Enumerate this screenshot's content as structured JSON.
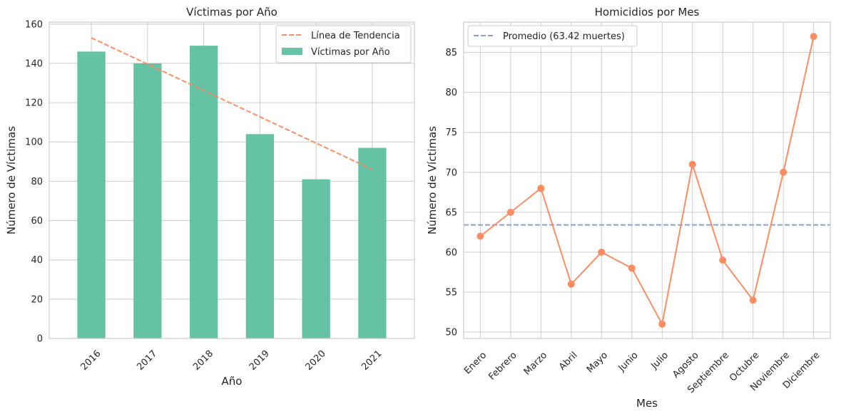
{
  "chart_data": [
    {
      "type": "bar",
      "title": "Víctimas por Año",
      "xlabel": "Año",
      "ylabel": "Número de Víctimas",
      "categories": [
        "2016",
        "2017",
        "2018",
        "2019",
        "2020",
        "2021"
      ],
      "series": [
        {
          "name": "Víctimas por Año",
          "values": [
            146,
            140,
            149,
            104,
            81,
            97
          ],
          "color": "#66c2a5"
        }
      ],
      "trend": {
        "name": "Línea de Tendencia",
        "start": 153,
        "end": 86,
        "color": "#fc8d62"
      },
      "ylim": [
        0,
        161
      ],
      "yticks": [
        0,
        20,
        40,
        60,
        80,
        100,
        120,
        140,
        160
      ],
      "grid": true,
      "legend": "top-right"
    },
    {
      "type": "line",
      "title": "Homicidios por Mes",
      "xlabel": "Mes",
      "ylabel": "Número de Víctimas",
      "categories": [
        "Enero",
        "Febrero",
        "Marzo",
        "Abril",
        "Mayo",
        "Junio",
        "Julio",
        "Agosto",
        "Septiembre",
        "Octubre",
        "Noviembre",
        "Diciembre"
      ],
      "series": [
        {
          "values": [
            62,
            65,
            68,
            56,
            60,
            58,
            51,
            71,
            59,
            54,
            70,
            87
          ],
          "color": "#fc8d62"
        }
      ],
      "reference_line": {
        "name": "Promedio (63.42 muertes)",
        "value": 63.42,
        "color": "#8da0cb"
      },
      "ylim": [
        49.2,
        88.8
      ],
      "yticks": [
        50,
        55,
        60,
        65,
        70,
        75,
        80,
        85
      ],
      "grid": true,
      "legend": "top-left"
    }
  ]
}
